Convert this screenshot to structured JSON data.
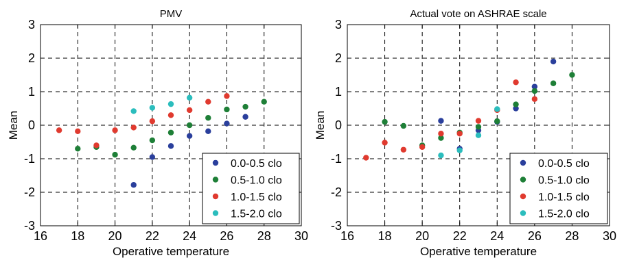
{
  "chart_data": [
    {
      "type": "scatter",
      "title": "PMV",
      "xlabel": "Operative temperature",
      "ylabel": "Mean",
      "xlim": [
        16,
        30
      ],
      "ylim": [
        -3,
        3
      ],
      "xticks": [
        16,
        18,
        20,
        22,
        24,
        26,
        28,
        30
      ],
      "yticks": [
        -3,
        -2,
        -1,
        0,
        1,
        2,
        3
      ],
      "grid": true,
      "legend_position": "bottom-right",
      "series": [
        {
          "name": "0.0-0.5 clo",
          "color": "#2a3f9c",
          "points": [
            [
              21,
              -1.78
            ],
            [
              22,
              -0.95
            ],
            [
              23,
              -0.62
            ],
            [
              24,
              -0.32
            ],
            [
              25,
              -0.18
            ],
            [
              26,
              0.05
            ],
            [
              27,
              0.25
            ]
          ]
        },
        {
          "name": "0.5-1.0 clo",
          "color": "#1e7f37",
          "points": [
            [
              18,
              -0.7
            ],
            [
              19,
              -0.65
            ],
            [
              20,
              -0.88
            ],
            [
              21,
              -0.67
            ],
            [
              22,
              -0.45
            ],
            [
              23,
              -0.22
            ],
            [
              24,
              0.0
            ],
            [
              25,
              0.22
            ],
            [
              26,
              0.47
            ],
            [
              27,
              0.55
            ],
            [
              28,
              0.7
            ]
          ]
        },
        {
          "name": "1.0-1.5 clo",
          "color": "#e03a2f",
          "points": [
            [
              17,
              -0.15
            ],
            [
              18,
              -0.18
            ],
            [
              19,
              -0.6
            ],
            [
              20,
              -0.15
            ],
            [
              21,
              -0.07
            ],
            [
              22,
              0.12
            ],
            [
              23,
              0.3
            ],
            [
              24,
              0.45
            ],
            [
              25,
              0.7
            ],
            [
              26,
              0.87
            ]
          ]
        },
        {
          "name": "1.5-2.0 clo",
          "color": "#2bbdbd",
          "points": [
            [
              21,
              0.42
            ],
            [
              22,
              0.52
            ],
            [
              23,
              0.63
            ],
            [
              24,
              0.82
            ]
          ]
        }
      ]
    },
    {
      "type": "scatter",
      "title": "Actual vote on ASHRAE scale",
      "xlabel": "Operative temperature",
      "ylabel": "Mean",
      "xlim": [
        16,
        30
      ],
      "ylim": [
        -3,
        3
      ],
      "xticks": [
        16,
        18,
        20,
        22,
        24,
        26,
        28,
        30
      ],
      "yticks": [
        -3,
        -2,
        -1,
        0,
        1,
        2,
        3
      ],
      "grid": true,
      "legend_position": "bottom-right",
      "series": [
        {
          "name": "0.0-0.5 clo",
          "color": "#2a3f9c",
          "points": [
            [
              21,
              0.13
            ],
            [
              22,
              -0.7
            ],
            [
              23,
              -0.15
            ],
            [
              24,
              0.1
            ],
            [
              25,
              0.5
            ],
            [
              26,
              1.15
            ],
            [
              27,
              1.9
            ]
          ]
        },
        {
          "name": "0.5-1.0 clo",
          "color": "#1e7f37",
          "points": [
            [
              18,
              0.1
            ],
            [
              19,
              -0.02
            ],
            [
              20,
              -0.6
            ],
            [
              21,
              -0.38
            ],
            [
              22,
              -0.22
            ],
            [
              23,
              -0.05
            ],
            [
              24,
              0.12
            ],
            [
              25,
              0.62
            ],
            [
              26,
              1.02
            ],
            [
              27,
              1.25
            ],
            [
              28,
              1.5
            ]
          ]
        },
        {
          "name": "1.0-1.5 clo",
          "color": "#e03a2f",
          "points": [
            [
              17,
              -0.97
            ],
            [
              18,
              -0.52
            ],
            [
              19,
              -0.73
            ],
            [
              20,
              -0.65
            ],
            [
              21,
              -0.25
            ],
            [
              22,
              -0.25
            ],
            [
              23,
              0.13
            ],
            [
              24,
              0.45
            ],
            [
              25,
              1.28
            ],
            [
              26,
              0.78
            ]
          ]
        },
        {
          "name": "1.5-2.0 clo",
          "color": "#2bbdbd",
          "points": [
            [
              21,
              -0.9
            ],
            [
              22,
              -0.75
            ],
            [
              23,
              -0.3
            ],
            [
              24,
              0.48
            ]
          ]
        }
      ]
    }
  ]
}
